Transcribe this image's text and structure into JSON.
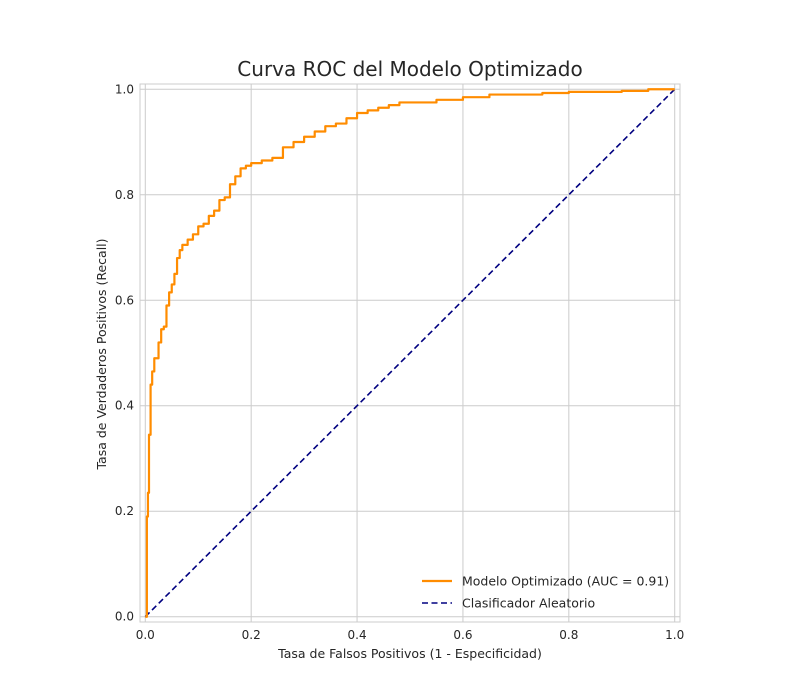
{
  "chart_data": {
    "type": "line",
    "title": "Curva ROC del Modelo Optimizado",
    "xlabel": "Tasa de Falsos Positivos (1 - Especificidad)",
    "ylabel": "Tasa de Verdaderos Positivos (Recall)",
    "xlim": [
      0.0,
      1.0
    ],
    "ylim": [
      0.0,
      1.0
    ],
    "xticks": [
      "0.0",
      "0.2",
      "0.4",
      "0.6",
      "0.8",
      "1.0"
    ],
    "yticks": [
      "0.0",
      "0.2",
      "0.4",
      "0.6",
      "0.8",
      "1.0"
    ],
    "grid": true,
    "legend_position": "lower-right",
    "series": [
      {
        "name": "Modelo Optimizado (AUC = 0.91)",
        "color": "#ff8c00",
        "style": "solid",
        "x": [
          0.0,
          0.003,
          0.005,
          0.007,
          0.01,
          0.013,
          0.017,
          0.02,
          0.025,
          0.03,
          0.035,
          0.04,
          0.045,
          0.05,
          0.055,
          0.06,
          0.065,
          0.07,
          0.08,
          0.09,
          0.1,
          0.11,
          0.12,
          0.13,
          0.14,
          0.15,
          0.16,
          0.17,
          0.18,
          0.19,
          0.2,
          0.22,
          0.24,
          0.26,
          0.28,
          0.3,
          0.32,
          0.34,
          0.36,
          0.38,
          0.4,
          0.42,
          0.44,
          0.46,
          0.48,
          0.5,
          0.55,
          0.6,
          0.65,
          0.7,
          0.75,
          0.8,
          0.85,
          0.9,
          0.95,
          1.0
        ],
        "y": [
          0.0,
          0.19,
          0.235,
          0.345,
          0.44,
          0.465,
          0.49,
          0.49,
          0.52,
          0.545,
          0.55,
          0.59,
          0.615,
          0.63,
          0.65,
          0.68,
          0.695,
          0.705,
          0.715,
          0.725,
          0.74,
          0.745,
          0.76,
          0.77,
          0.79,
          0.795,
          0.82,
          0.835,
          0.85,
          0.855,
          0.86,
          0.865,
          0.87,
          0.89,
          0.9,
          0.91,
          0.92,
          0.93,
          0.935,
          0.945,
          0.955,
          0.96,
          0.965,
          0.97,
          0.975,
          0.975,
          0.98,
          0.985,
          0.99,
          0.99,
          0.993,
          0.995,
          0.995,
          0.997,
          1.0,
          1.0
        ]
      },
      {
        "name": "Clasificador Aleatorio",
        "color": "#000080",
        "style": "dashed",
        "x": [
          0.0,
          1.0
        ],
        "y": [
          0.0,
          1.0
        ]
      }
    ]
  }
}
